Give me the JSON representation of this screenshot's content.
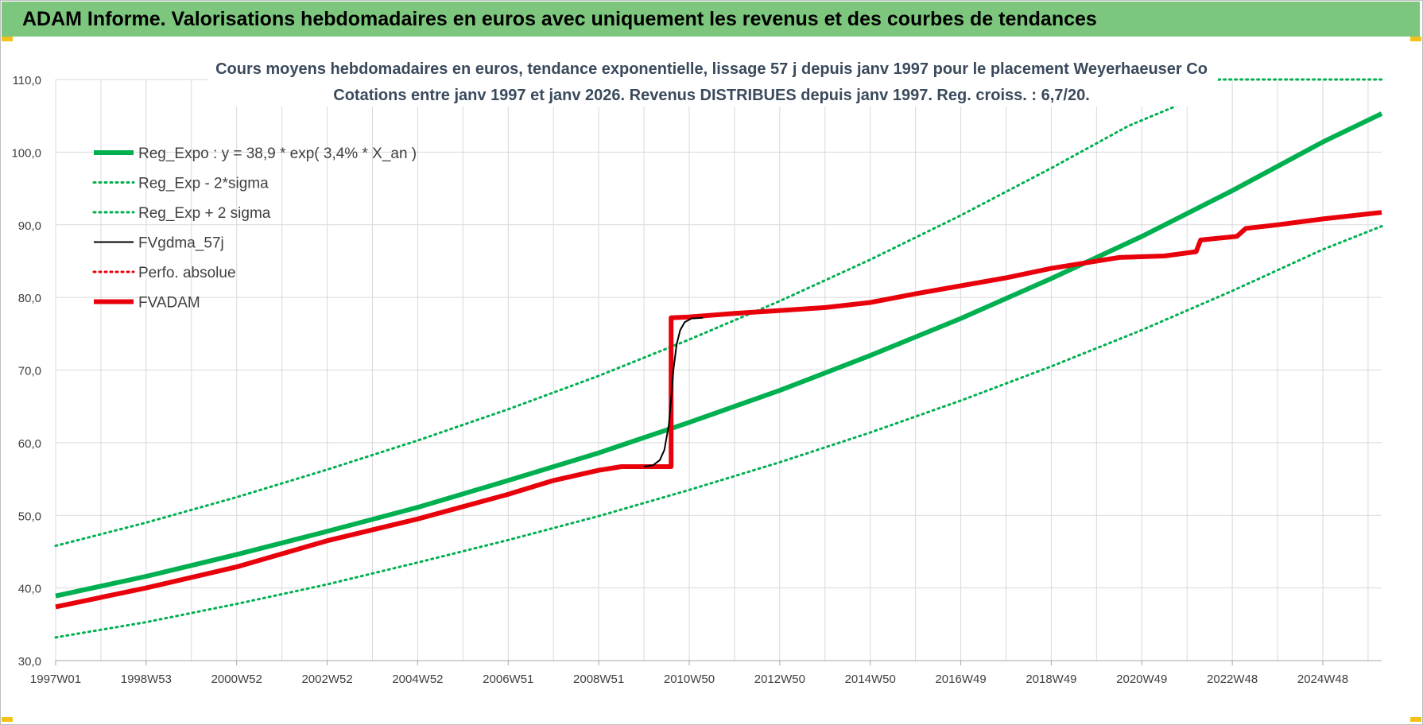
{
  "banner": {
    "title": "ADAM Informe. Valorisations hebdomadaires en euros avec uniquement les revenus et des courbes de tendances"
  },
  "colors": {
    "banner": "#7dc67d",
    "reg_expo": "#00b050",
    "fvgdma": "#000000",
    "perfo": "#e8000b",
    "fvadam": "#e8000b"
  },
  "chart_data": {
    "type": "line",
    "title_line1": "Cours moyens hebdomadaires en euros, tendance exponentielle, lissage 57 j depuis janv 1997 pour le placement Weyerhaeuser Co",
    "title_line2": "Cotations entre janv 1997 et janv 2026. Revenus DISTRIBUES depuis janv 1997. Reg. croiss. : 6,7/20.",
    "xlabel": "",
    "ylabel": "",
    "ylim": [
      30,
      110
    ],
    "xlim": [
      1997.0,
      2026.3
    ],
    "y_ticks": [
      "30,0",
      "40,0",
      "50,0",
      "60,0",
      "70,0",
      "80,0",
      "90,0",
      "100,0",
      "110,0"
    ],
    "x_ticks": [
      {
        "label": "1997W01",
        "x": 1997.0
      },
      {
        "label": "1998W53",
        "x": 1999.0
      },
      {
        "label": "2000W52",
        "x": 2001.0
      },
      {
        "label": "2002W52",
        "x": 2003.0
      },
      {
        "label": "2004W52",
        "x": 2005.0
      },
      {
        "label": "2006W51",
        "x": 2007.0
      },
      {
        "label": "2008W51",
        "x": 2009.0
      },
      {
        "label": "2010W50",
        "x": 2011.0
      },
      {
        "label": "2012W50",
        "x": 2013.0
      },
      {
        "label": "2014W50",
        "x": 2015.0
      },
      {
        "label": "2016W49",
        "x": 2017.0
      },
      {
        "label": "2018W49",
        "x": 2019.0
      },
      {
        "label": "2020W49",
        "x": 2021.0
      },
      {
        "label": "2022W48",
        "x": 2023.0
      },
      {
        "label": "2024W48",
        "x": 2025.0
      }
    ],
    "grid": true,
    "legend_position": "top-left",
    "series": [
      {
        "name": "Reg_Expo : y = 38,9 * exp( 3,4% *  X_an )",
        "style": "solid-thick",
        "color": "#00b050",
        "points": [
          [
            1997.0,
            38.9
          ],
          [
            1999.0,
            41.6
          ],
          [
            2001.0,
            44.6
          ],
          [
            2003.0,
            47.8
          ],
          [
            2005.0,
            51.1
          ],
          [
            2007.0,
            54.8
          ],
          [
            2009.0,
            58.6
          ],
          [
            2011.0,
            62.8
          ],
          [
            2013.0,
            67.2
          ],
          [
            2015.0,
            72.0
          ],
          [
            2017.0,
            77.1
          ],
          [
            2019.0,
            82.6
          ],
          [
            2021.0,
            88.4
          ],
          [
            2023.0,
            94.7
          ],
          [
            2025.0,
            101.4
          ],
          [
            2026.3,
            105.3
          ]
        ]
      },
      {
        "name": "Reg_Exp - 2*sigma",
        "style": "dotted",
        "color": "#00b050",
        "points": [
          [
            1997.0,
            33.2
          ],
          [
            1999.0,
            35.3
          ],
          [
            2001.0,
            37.8
          ],
          [
            2003.0,
            40.5
          ],
          [
            2005.0,
            43.5
          ],
          [
            2007.0,
            46.6
          ],
          [
            2009.0,
            49.9
          ],
          [
            2011.0,
            53.5
          ],
          [
            2013.0,
            57.3
          ],
          [
            2015.0,
            61.4
          ],
          [
            2017.0,
            65.8
          ],
          [
            2019.0,
            70.5
          ],
          [
            2021.0,
            75.5
          ],
          [
            2023.0,
            80.9
          ],
          [
            2025.0,
            86.6
          ],
          [
            2026.3,
            89.8
          ]
        ]
      },
      {
        "name": "Reg_Exp + 2 sigma",
        "style": "dotted",
        "color": "#00b050",
        "points": [
          [
            1997.0,
            45.8
          ],
          [
            1999.0,
            49.0
          ],
          [
            2001.0,
            52.5
          ],
          [
            2003.0,
            56.3
          ],
          [
            2005.0,
            60.3
          ],
          [
            2007.0,
            64.6
          ],
          [
            2009.0,
            69.2
          ],
          [
            2011.0,
            74.2
          ],
          [
            2013.0,
            79.5
          ],
          [
            2015.0,
            85.2
          ],
          [
            2017.0,
            91.3
          ],
          [
            2019.0,
            97.8
          ],
          [
            2020.7,
            103.6
          ],
          [
            2021.7,
            106.2
          ],
          [
            2022.5,
            108.7
          ],
          [
            2022.7,
            110.0
          ],
          [
            2026.3,
            110.0
          ]
        ]
      },
      {
        "name": "FVgdma_57j",
        "style": "solid",
        "color": "#000000",
        "points": [
          [
            2010.0,
            56.7
          ],
          [
            2010.2,
            56.9
          ],
          [
            2010.35,
            57.6
          ],
          [
            2010.45,
            59.0
          ],
          [
            2010.55,
            62.5
          ],
          [
            2010.6,
            66.0
          ],
          [
            2010.65,
            70.0
          ],
          [
            2010.72,
            73.5
          ],
          [
            2010.8,
            75.5
          ],
          [
            2010.9,
            76.6
          ],
          [
            2011.05,
            77.1
          ],
          [
            2011.3,
            77.2
          ]
        ]
      },
      {
        "name": "Perfo. absolue",
        "style": "dotted",
        "color": "#e8000b",
        "points": []
      },
      {
        "name": "FVADAM",
        "style": "solid-thick",
        "color": "#e8000b",
        "points": [
          [
            1997.0,
            37.4
          ],
          [
            1999.0,
            40.0
          ],
          [
            2001.0,
            42.9
          ],
          [
            2003.0,
            46.5
          ],
          [
            2005.0,
            49.5
          ],
          [
            2007.0,
            52.9
          ],
          [
            2008.0,
            54.8
          ],
          [
            2009.0,
            56.2
          ],
          [
            2009.5,
            56.7
          ],
          [
            2010.6,
            56.7
          ],
          [
            2010.6,
            77.2
          ],
          [
            2011.0,
            77.3
          ],
          [
            2012.0,
            77.8
          ],
          [
            2013.0,
            78.2
          ],
          [
            2014.0,
            78.6
          ],
          [
            2015.0,
            79.3
          ],
          [
            2016.0,
            80.5
          ],
          [
            2017.0,
            81.6
          ],
          [
            2018.0,
            82.7
          ],
          [
            2019.0,
            84.0
          ],
          [
            2020.0,
            85.0
          ],
          [
            2020.5,
            85.5
          ],
          [
            2021.5,
            85.7
          ],
          [
            2022.2,
            86.3
          ],
          [
            2022.3,
            87.9
          ],
          [
            2023.1,
            88.4
          ],
          [
            2023.3,
            89.5
          ],
          [
            2024.0,
            90.0
          ],
          [
            2025.0,
            90.8
          ],
          [
            2026.3,
            91.7
          ]
        ]
      }
    ]
  }
}
